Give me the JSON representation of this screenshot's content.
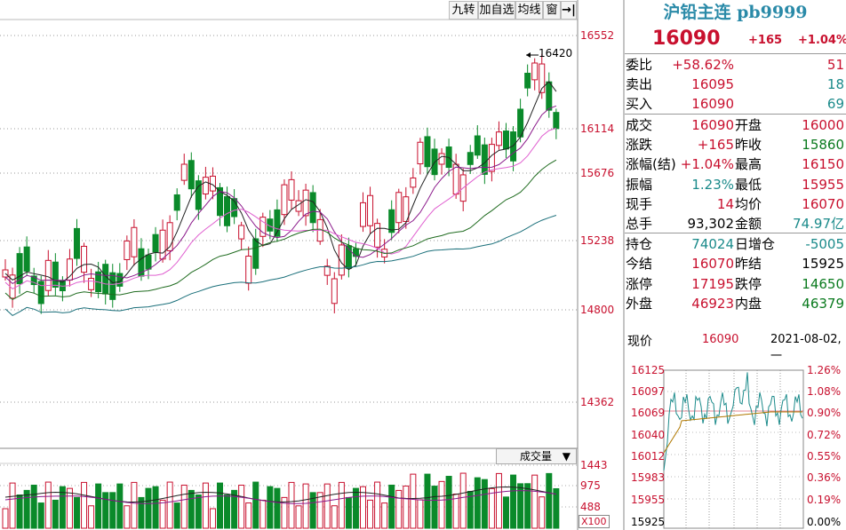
{
  "toolbar": {
    "btn_nine": "九转",
    "btn_add_watch": "加自选",
    "btn_ma": "均线",
    "btn_window": "窗"
  },
  "price_axis": [
    "16552",
    "16114",
    "15676",
    "15238",
    "14800",
    "14362"
  ],
  "high_label": "16420",
  "volume": {
    "selector": "成交量",
    "ticks": [
      "1443",
      "975",
      "488"
    ],
    "multiplier": "X100"
  },
  "quote": {
    "title": "沪铅主连 pb9999",
    "price": "16090",
    "change": "+165",
    "change_pct": "+1.04%",
    "rows": [
      {
        "label": "委比",
        "v1": "+58.62%",
        "c1": "red",
        "v2": "51",
        "c2": "red"
      },
      {
        "label": "卖出",
        "v1": "16095",
        "c1": "red",
        "v2": "18",
        "c2": "cyan"
      },
      {
        "label": "买入",
        "v1": "16090",
        "c1": "red",
        "v2": "69",
        "c2": "cyan"
      },
      {
        "label": "成交",
        "v1": "16090",
        "c1": "red",
        "label2": "开盘",
        "v2": "16000",
        "c2": "red"
      },
      {
        "label": "涨跌",
        "v1": "+165",
        "c1": "red",
        "label2": "昨收",
        "v2": "15860",
        "c2": "green"
      },
      {
        "label": "涨幅(结)",
        "v1": "+1.04%",
        "c1": "red",
        "label2": "最高",
        "v2": "16150",
        "c2": "red"
      },
      {
        "label": "振幅",
        "v1": "1.23%",
        "c1": "cyan",
        "label2": "最低",
        "v2": "15955",
        "c2": "red"
      },
      {
        "label": "现手",
        "v1": "14",
        "c1": "red",
        "label2": "均价",
        "v2": "16070",
        "c2": "red"
      },
      {
        "label": "总手",
        "v1": "93,302",
        "c1": "blk",
        "label2": "金额",
        "v2": "74.97亿",
        "c2": "cyan"
      },
      {
        "label": "持仓",
        "v1": "74024",
        "c1": "cyan",
        "label2": "日增仓",
        "v2": "-5005",
        "c2": "cyan"
      },
      {
        "label": "今结",
        "v1": "16070",
        "c1": "red",
        "label2": "昨结",
        "v2": "15925",
        "c2": "blk"
      },
      {
        "label": "涨停",
        "v1": "17195",
        "c1": "red",
        "label2": "跌停",
        "v2": "14650",
        "c2": "green"
      },
      {
        "label": "外盘",
        "v1": "46923",
        "c1": "red",
        "label2": "内盘",
        "v2": "46379",
        "c2": "green"
      }
    ]
  },
  "tick": {
    "label": "现价",
    "price": "16090",
    "datetime": "2021-08-02,一"
  },
  "mini": {
    "left_ticks": [
      "16125",
      "16097",
      "16069",
      "16040",
      "16012",
      "15983",
      "15955",
      "15925"
    ],
    "right_ticks": [
      "1.26%",
      "1.08%",
      "0.90%",
      "0.72%",
      "0.55%",
      "0.36%",
      "0.19%",
      "0.00%"
    ]
  },
  "colors": {
    "up": "#c8102e",
    "down": "#0a8a2a",
    "ma_black": "#222222",
    "ma_purple": "#8b1a8b",
    "ma_pink": "#e060d0",
    "ma_green": "#1f6b1f",
    "ma_teal": "#1a6f7a",
    "tick_line": "#1a8a8a",
    "avg_line": "#b07800"
  }
}
